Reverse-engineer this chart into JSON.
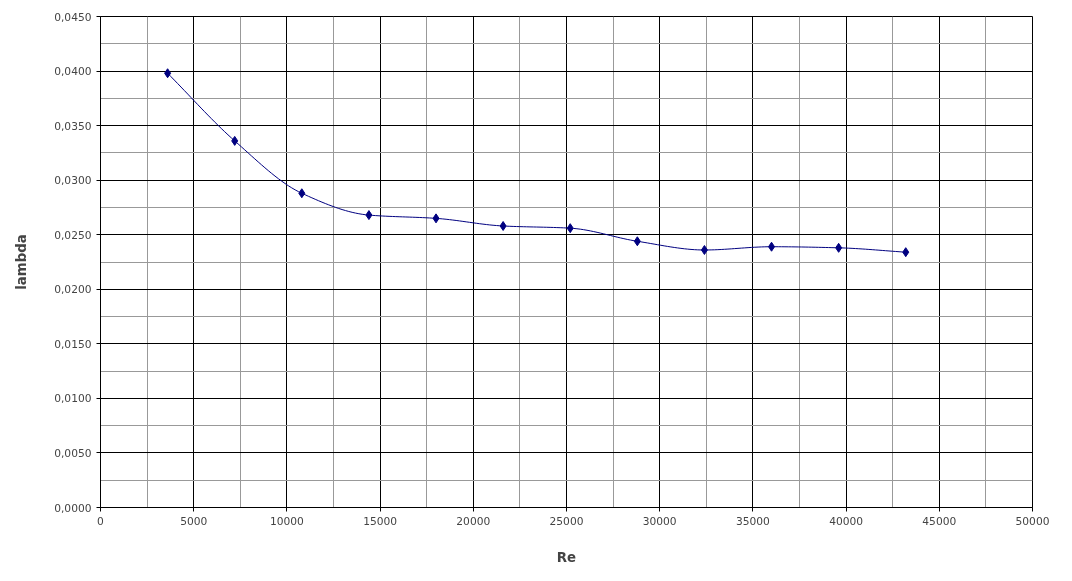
{
  "chart_data": {
    "type": "line",
    "xlabel": "Re",
    "ylabel": "lambda",
    "x": [
      3600,
      7200,
      10800,
      14400,
      18000,
      21600,
      25200,
      28800,
      32400,
      36000,
      39600,
      43200
    ],
    "series": [
      {
        "color": "#000080",
        "values": [
          0.0398,
          0.0336,
          0.0288,
          0.0268,
          0.0265,
          0.0258,
          0.0256,
          0.0244,
          0.0236,
          0.0239,
          0.0238,
          0.0234
        ]
      }
    ],
    "xlim": [
      0,
      50000
    ],
    "xticks": [
      0,
      5000,
      10000,
      15000,
      20000,
      25000,
      30000,
      35000,
      40000,
      45000,
      50000
    ],
    "ylim": [
      0,
      0.045
    ],
    "yticks": [
      {
        "value": 0,
        "label": "0,0000"
      },
      {
        "value": 0.005,
        "label": "0,0050"
      },
      {
        "value": 0.01,
        "label": "0,0100"
      },
      {
        "value": 0.015,
        "label": "0,0150"
      },
      {
        "value": 0.02,
        "label": "0,0200"
      },
      {
        "value": 0.025,
        "label": "0,0250"
      },
      {
        "value": 0.03,
        "label": "0,0300"
      },
      {
        "value": 0.035,
        "label": "0,0350"
      },
      {
        "value": 0.04,
        "label": "0,0400"
      },
      {
        "value": 0.045,
        "label": "0,0450"
      }
    ],
    "grid": true,
    "marker": "diamond",
    "line_style": "solid"
  }
}
